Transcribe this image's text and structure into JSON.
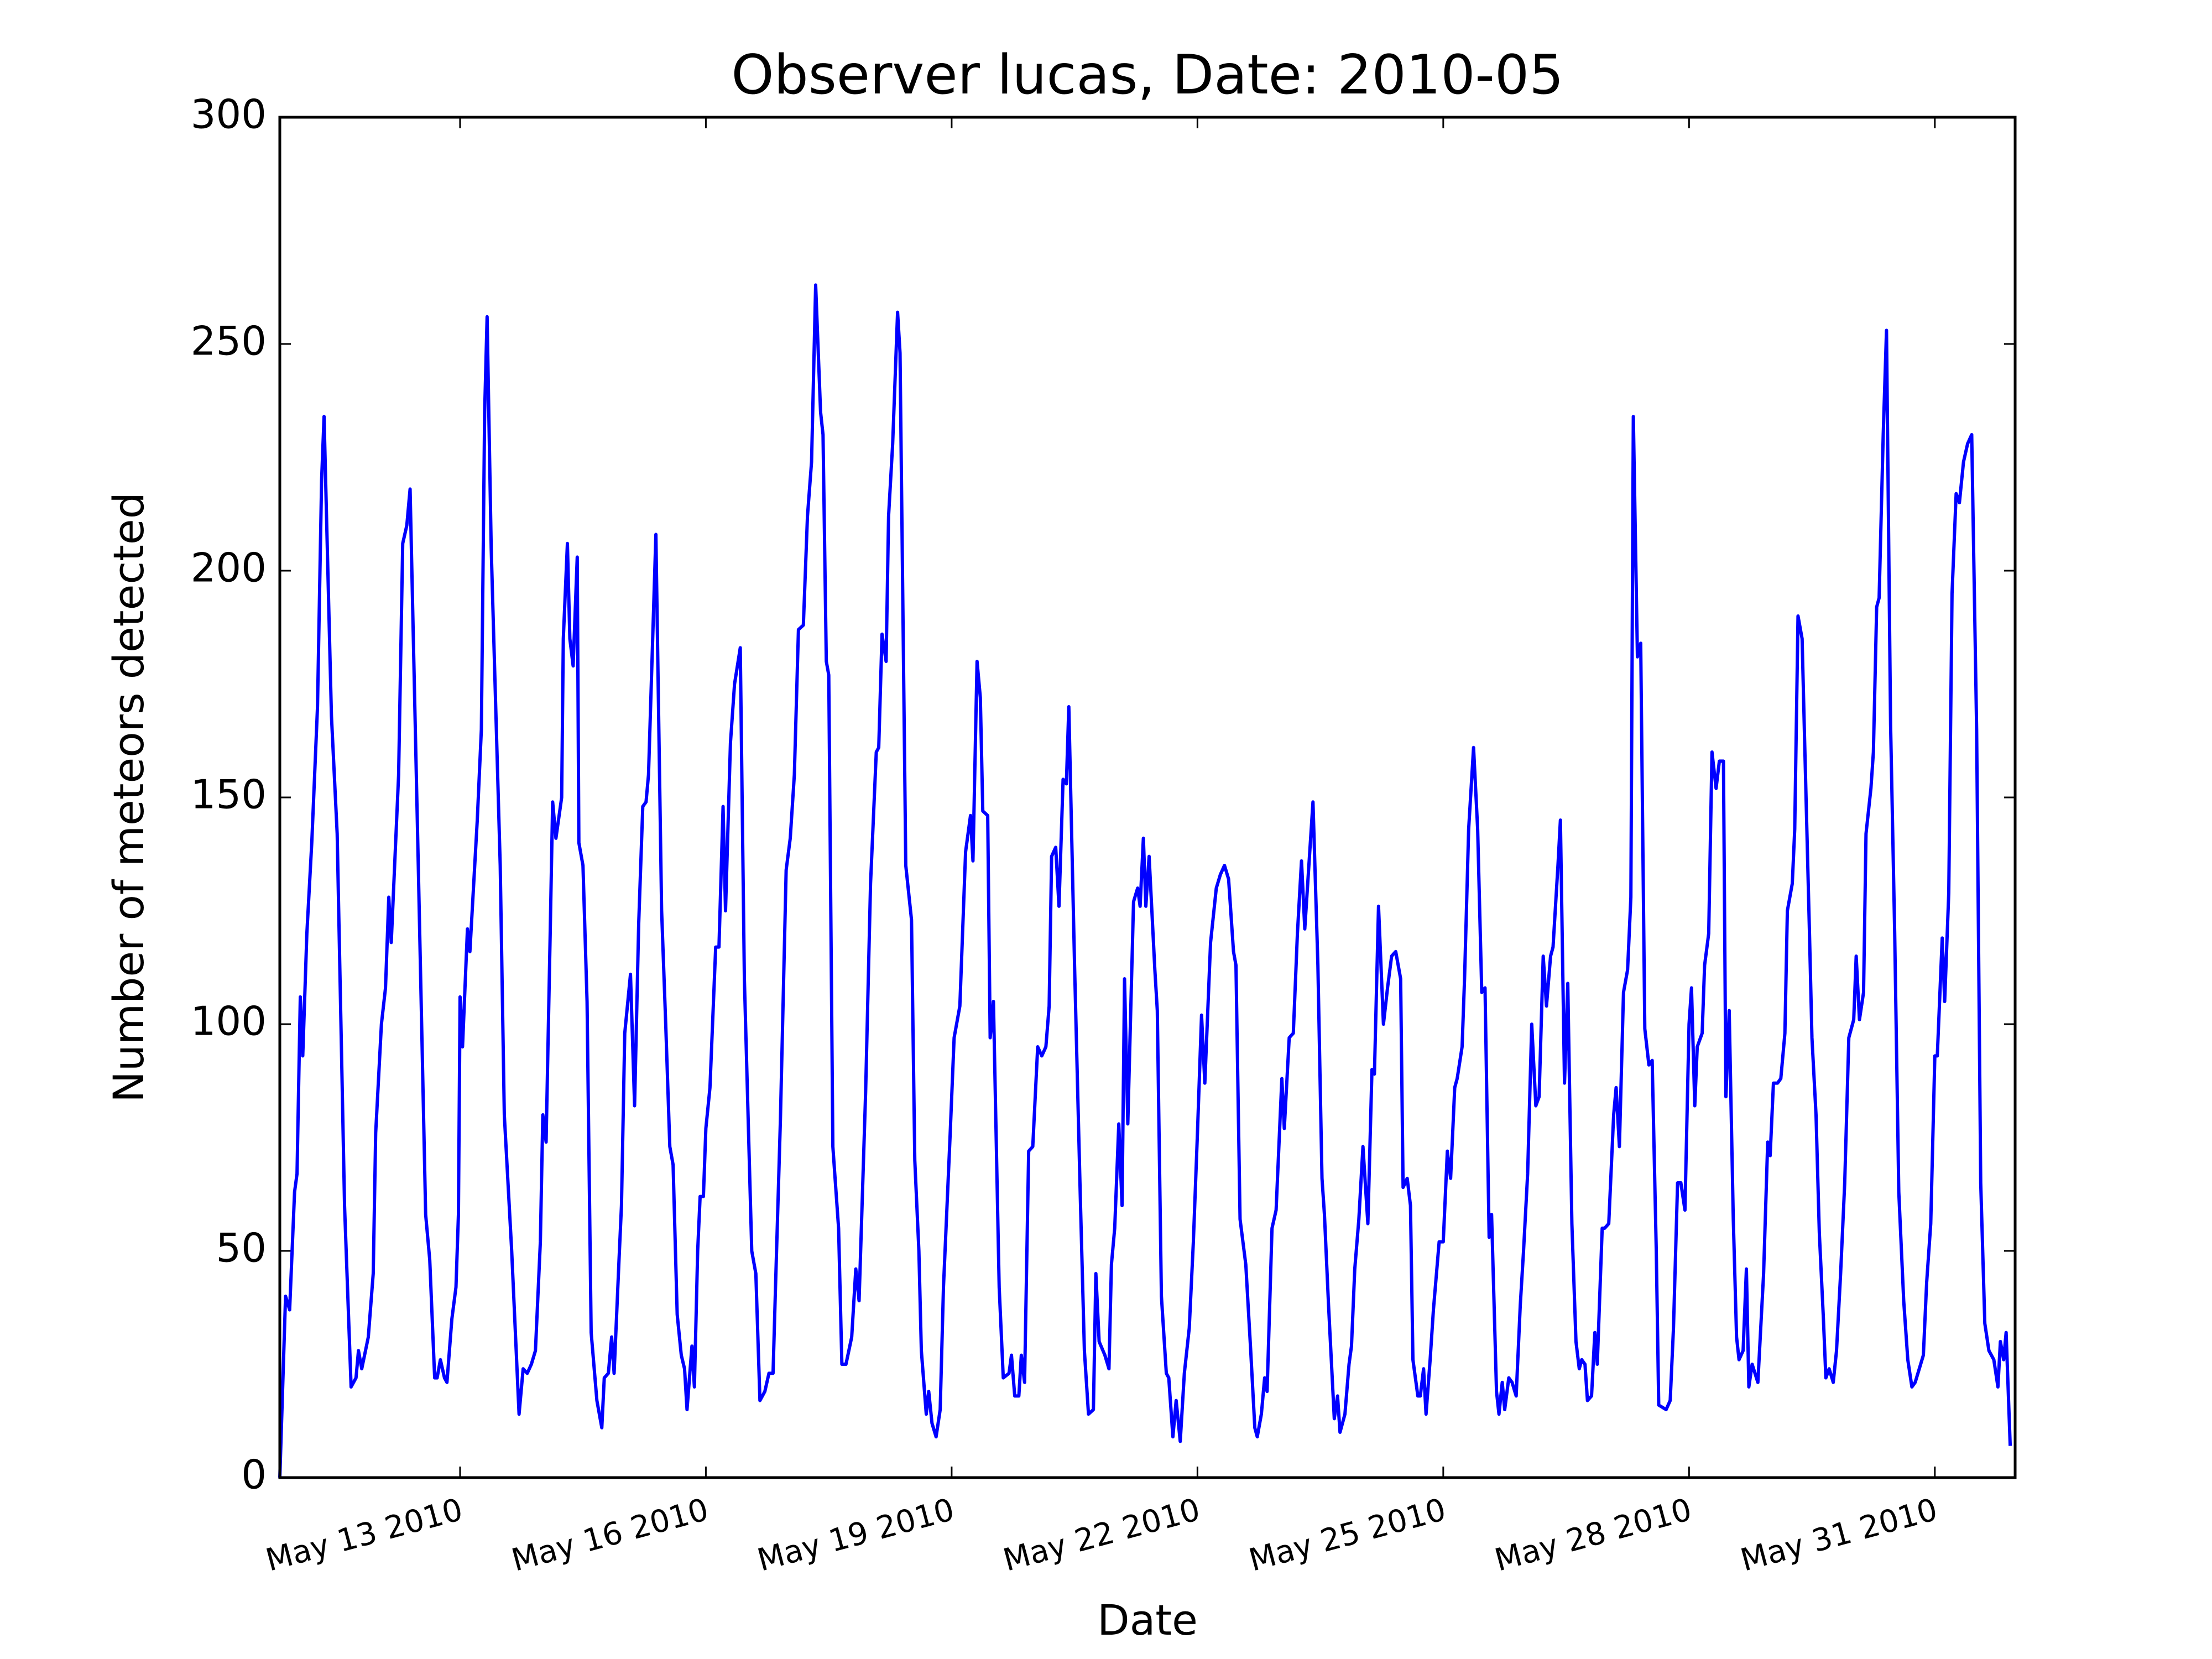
{
  "chart_data": {
    "type": "line",
    "title": "Observer lucas, Date: 2010-05",
    "x_label": "Date",
    "y_label": "Number of meteors detected",
    "color": "#0000ff",
    "grid": false,
    "xlim": [
      10.8,
      31.98
    ],
    "ylim": [
      0,
      300
    ],
    "xticks": [
      {
        "value": 13,
        "label": "May 13 2010"
      },
      {
        "value": 16,
        "label": "May 16 2010"
      },
      {
        "value": 19,
        "label": "May 19 2010"
      },
      {
        "value": 22,
        "label": "May 22 2010"
      },
      {
        "value": 25,
        "label": "May 25 2010"
      },
      {
        "value": 28,
        "label": "May 28 2010"
      },
      {
        "value": 31,
        "label": "May 31 2010"
      }
    ],
    "yticks": [
      0,
      50,
      100,
      150,
      200,
      250,
      300
    ],
    "x": [
      10.8,
      10.87,
      10.92,
      10.98,
      11.01,
      11.05,
      11.08,
      11.13,
      11.19,
      11.26,
      11.31,
      11.34,
      11.43,
      11.5,
      11.59,
      11.64,
      11.67,
      11.73,
      11.76,
      11.8,
      11.88,
      11.94,
      11.97,
      12.04,
      12.09,
      12.13,
      12.16,
      12.25,
      12.3,
      12.35,
      12.39,
      12.49,
      12.58,
      12.63,
      12.69,
      12.72,
      12.76,
      12.81,
      12.84,
      12.9,
      12.95,
      12.98,
      13.0,
      13.03,
      13.09,
      13.12,
      13.21,
      13.26,
      13.3,
      13.33,
      13.38,
      13.49,
      13.54,
      13.63,
      13.72,
      13.77,
      13.82,
      13.87,
      13.92,
      13.98,
      14.01,
      14.05,
      14.1,
      14.13,
      14.17,
      14.24,
      14.26,
      14.31,
      14.34,
      14.38,
      14.43,
      14.45,
      14.5,
      14.55,
      14.6,
      14.67,
      14.73,
      14.76,
      14.81,
      14.85,
      14.88,
      14.94,
      14.97,
      15.01,
      15.08,
      15.13,
      15.18,
      15.23,
      15.27,
      15.3,
      15.39,
      15.46,
      15.51,
      15.56,
      15.6,
      15.65,
      15.7,
      15.74,
      15.77,
      15.83,
      15.86,
      15.9,
      15.93,
      15.97,
      16.0,
      16.05,
      16.12,
      16.16,
      16.21,
      16.24,
      16.3,
      16.35,
      16.42,
      16.47,
      16.56,
      16.61,
      16.66,
      16.72,
      16.77,
      16.82,
      16.85,
      16.91,
      16.98,
      17.03,
      17.08,
      17.13,
      17.19,
      17.24,
      17.29,
      17.34,
      17.4,
      17.43,
      17.47,
      17.5,
      17.55,
      17.62,
      17.66,
      17.71,
      17.78,
      17.83,
      17.87,
      17.95,
      18.01,
      18.08,
      18.11,
      18.15,
      18.2,
      18.23,
      18.28,
      18.34,
      18.37,
      18.44,
      18.51,
      18.55,
      18.6,
      18.63,
      18.69,
      18.72,
      18.76,
      18.81,
      18.86,
      18.9,
      18.98,
      19.03,
      19.1,
      19.17,
      19.23,
      19.26,
      19.31,
      19.35,
      19.38,
      19.44,
      19.47,
      19.51,
      19.58,
      19.63,
      19.7,
      19.73,
      19.77,
      19.82,
      19.85,
      19.89,
      19.94,
      19.99,
      20.05,
      20.1,
      20.15,
      20.19,
      20.22,
      20.27,
      20.31,
      20.36,
      20.4,
      20.43,
      20.5,
      20.57,
      20.62,
      20.67,
      20.73,
      20.76,
      20.8,
      20.87,
      20.92,
      20.95,
      20.99,
      21.04,
      21.08,
      21.11,
      21.15,
      21.22,
      21.27,
      21.3,
      21.34,
      21.37,
      21.41,
      21.48,
      21.51,
      21.56,
      21.62,
      21.65,
      21.7,
      21.74,
      21.79,
      21.84,
      21.9,
      21.95,
      22.0,
      22.05,
      22.09,
      22.16,
      22.23,
      22.28,
      22.33,
      22.38,
      22.44,
      22.47,
      22.52,
      22.59,
      22.65,
      22.7,
      22.73,
      22.78,
      22.82,
      22.85,
      22.91,
      22.96,
      23.03,
      23.06,
      23.12,
      23.17,
      23.22,
      23.27,
      23.31,
      23.36,
      23.41,
      23.47,
      23.52,
      23.55,
      23.6,
      23.67,
      23.71,
      23.74,
      23.8,
      23.85,
      23.88,
      23.92,
      23.97,
      24.02,
      24.08,
      24.13,
      24.16,
      24.21,
      24.27,
      24.32,
      24.37,
      24.42,
      24.48,
      24.51,
      24.56,
      24.6,
      24.63,
      24.69,
      24.72,
      24.76,
      24.79,
      24.84,
      24.88,
      24.95,
      25.0,
      25.05,
      25.09,
      25.14,
      25.17,
      25.23,
      25.26,
      25.31,
      25.37,
      25.42,
      25.47,
      25.51,
      25.56,
      25.59,
      25.65,
      25.68,
      25.72,
      25.75,
      25.8,
      25.84,
      25.89,
      25.94,
      25.98,
      26.03,
      26.08,
      26.13,
      26.17,
      26.22,
      26.26,
      26.31,
      26.34,
      26.4,
      26.43,
      26.48,
      26.52,
      26.57,
      26.62,
      26.66,
      26.69,
      26.73,
      26.76,
      26.81,
      26.85,
      26.88,
      26.94,
      26.97,
      27.02,
      27.08,
      27.11,
      27.15,
      27.2,
      27.25,
      27.29,
      27.32,
      27.37,
      27.41,
      27.46,
      27.51,
      27.55,
      27.6,
      27.63,
      27.72,
      27.77,
      27.81,
      27.86,
      27.9,
      27.95,
      28.0,
      28.03,
      28.07,
      28.1,
      28.16,
      28.19,
      28.24,
      28.28,
      28.33,
      28.37,
      28.42,
      28.45,
      28.49,
      28.54,
      28.58,
      28.61,
      28.66,
      28.7,
      28.73,
      28.77,
      28.84,
      28.91,
      28.96,
      28.99,
      29.03,
      29.08,
      29.12,
      29.17,
      29.2,
      29.26,
      29.29,
      29.33,
      29.38,
      29.41,
      29.47,
      29.5,
      29.55,
      29.59,
      29.64,
      29.67,
      29.71,
      29.76,
      29.8,
      29.85,
      29.9,
      29.95,
      30.01,
      30.04,
      30.08,
      30.13,
      30.16,
      30.22,
      30.25,
      30.29,
      30.32,
      30.37,
      30.41,
      30.46,
      30.51,
      30.56,
      30.62,
      30.67,
      30.72,
      30.76,
      30.81,
      30.86,
      30.9,
      30.95,
      31.0,
      31.03,
      31.09,
      31.12,
      31.17,
      31.21,
      31.26,
      31.3,
      31.35,
      31.4,
      31.45,
      31.51,
      31.56,
      31.61,
      31.66,
      31.72,
      31.77,
      31.8,
      31.84,
      31.87,
      31.92
    ],
    "values": [
      0,
      40,
      37,
      63,
      67,
      106,
      93,
      120,
      140,
      170,
      220,
      234,
      168,
      142,
      60,
      35,
      20,
      22,
      28,
      24,
      31,
      45,
      76,
      100,
      108,
      128,
      118,
      155,
      206,
      210,
      218,
      135,
      58,
      48,
      22,
      22,
      26,
      22,
      21,
      35,
      42,
      58,
      106,
      95,
      121,
      116,
      145,
      165,
      235,
      256,
      205,
      135,
      80,
      50,
      14,
      24,
      23,
      25,
      28,
      52,
      80,
      74,
      120,
      149,
      141,
      150,
      185,
      206,
      185,
      179,
      203,
      140,
      135,
      105,
      32,
      17,
      11,
      22,
      23,
      31,
      23,
      48,
      60,
      98,
      111,
      82,
      122,
      148,
      149,
      155,
      208,
      125,
      100,
      73,
      69,
      36,
      27,
      24,
      15,
      29,
      20,
      50,
      62,
      62,
      77,
      86,
      117,
      117,
      148,
      125,
      162,
      175,
      183,
      110,
      50,
      45,
      17,
      19,
      23,
      23,
      42,
      79,
      134,
      141,
      155,
      187,
      188,
      212,
      224,
      263,
      235,
      230,
      180,
      177,
      73,
      55,
      25,
      25,
      31,
      46,
      39,
      85,
      131,
      160,
      161,
      186,
      180,
      212,
      228,
      257,
      248,
      135,
      123,
      70,
      50,
      28,
      14,
      19,
      12,
      9,
      15,
      42,
      75,
      97,
      104,
      138,
      146,
      136,
      180,
      172,
      147,
      146,
      97,
      105,
      42,
      22,
      23,
      27,
      18,
      18,
      27,
      21,
      72,
      73,
      95,
      93,
      95,
      104,
      137,
      139,
      126,
      154,
      153,
      170,
      113,
      62,
      28,
      14,
      15,
      45,
      30,
      27,
      24,
      47,
      55,
      78,
      60,
      110,
      78,
      127,
      130,
      126,
      141,
      126,
      137,
      112,
      103,
      40,
      23,
      22,
      9,
      17,
      8,
      23,
      33,
      52,
      76,
      102,
      87,
      118,
      130,
      133,
      135,
      132,
      116,
      113,
      57,
      47,
      28,
      11,
      9,
      14,
      22,
      19,
      55,
      59,
      88,
      77,
      97,
      98,
      120,
      136,
      121,
      135,
      149,
      113,
      66,
      58,
      38,
      13,
      18,
      10,
      14,
      25,
      29,
      46,
      57,
      73,
      56,
      90,
      89,
      126,
      100,
      108,
      115,
      116,
      110,
      64,
      66,
      60,
      26,
      18,
      18,
      24,
      14,
      26,
      37,
      52,
      52,
      72,
      66,
      86,
      88,
      95,
      110,
      143,
      161,
      143,
      107,
      108,
      53,
      58,
      19,
      14,
      21,
      15,
      22,
      21,
      18,
      38,
      50,
      67,
      100,
      82,
      84,
      115,
      104,
      115,
      117,
      135,
      145,
      87,
      109,
      56,
      30,
      24,
      26,
      25,
      17,
      18,
      32,
      25,
      55,
      55,
      56,
      80,
      86,
      73,
      107,
      112,
      128,
      234,
      181,
      184,
      99,
      91,
      92,
      50,
      16,
      15,
      17,
      33,
      65,
      65,
      59,
      100,
      108,
      82,
      95,
      98,
      113,
      120,
      160,
      152,
      158,
      158,
      84,
      103,
      57,
      31,
      26,
      28,
      46,
      20,
      25,
      21,
      45,
      74,
      71,
      87,
      87,
      88,
      98,
      125,
      131,
      143,
      190,
      185,
      163,
      120,
      97,
      80,
      54,
      35,
      22,
      24,
      21,
      28,
      45,
      65,
      97,
      101,
      115,
      101,
      107,
      142,
      152,
      160,
      192,
      194,
      230,
      253,
      166,
      120,
      63,
      39,
      26,
      20,
      21,
      24,
      27,
      43,
      56,
      93,
      93,
      119,
      105,
      129,
      195,
      217,
      215,
      224,
      228,
      230,
      165,
      65,
      34,
      28,
      26,
      20,
      30,
      26,
      32,
      7
    ]
  }
}
